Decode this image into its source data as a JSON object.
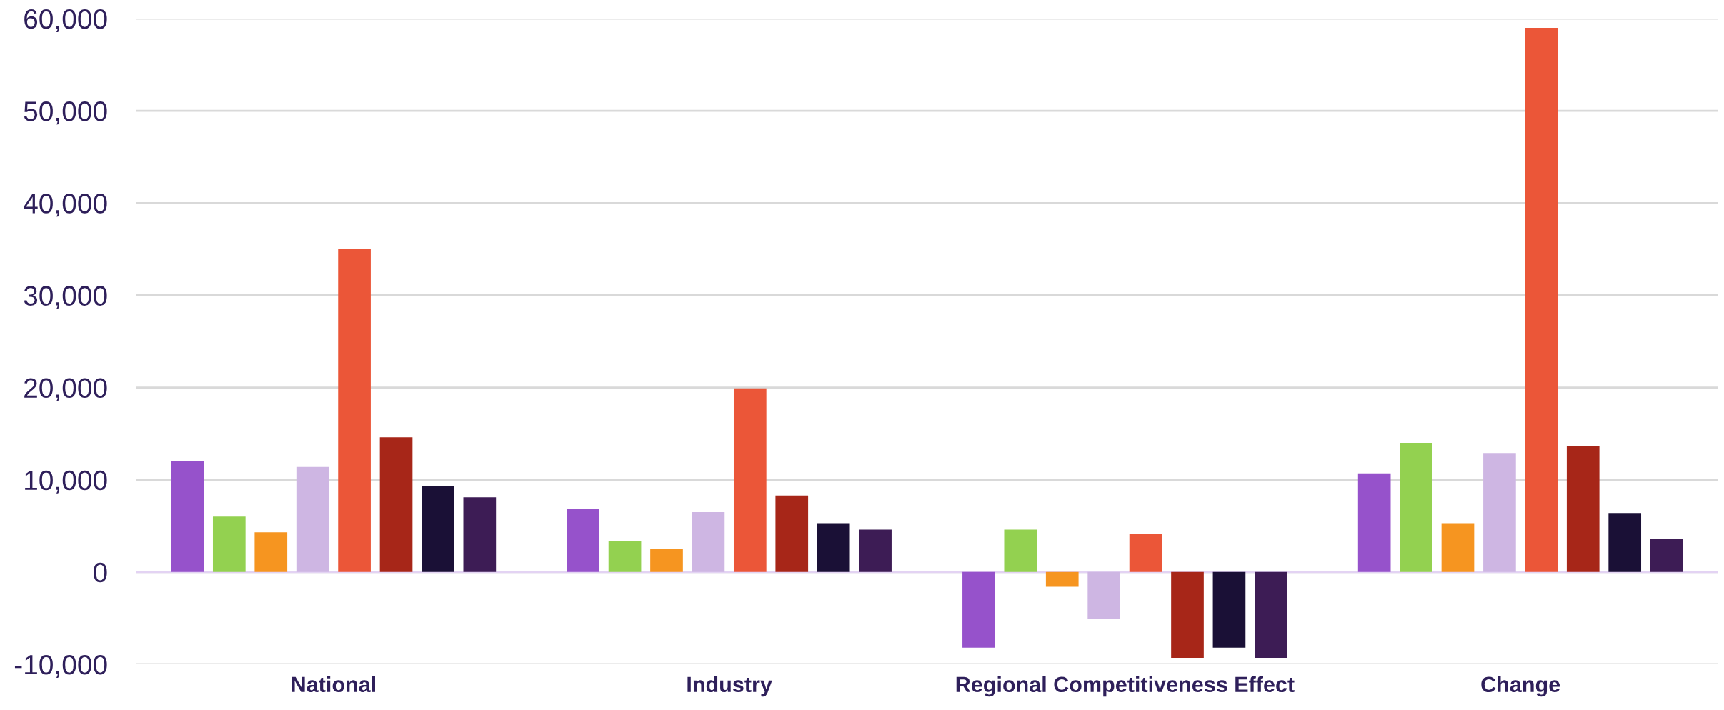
{
  "chart_data": {
    "type": "bar",
    "categories": [
      "National",
      "Industry",
      "Regional Competitiveness Effect",
      "Change"
    ],
    "series": [
      {
        "color": "#9652cb",
        "values": [
          12000,
          6800,
          -8200,
          10700
        ]
      },
      {
        "color": "#93d150",
        "values": [
          6000,
          3400,
          4600,
          14000
        ]
      },
      {
        "color": "#f69520",
        "values": [
          4300,
          2500,
          -1600,
          5300
        ]
      },
      {
        "color": "#ceb6e3",
        "values": [
          11400,
          6500,
          -5100,
          12900
        ]
      },
      {
        "color": "#eb5638",
        "values": [
          35000,
          19900,
          4100,
          59000
        ]
      },
      {
        "color": "#a72618",
        "values": [
          14600,
          8300,
          -9300,
          13700
        ]
      },
      {
        "color": "#1a1036",
        "values": [
          9300,
          5300,
          -8200,
          6400
        ]
      },
      {
        "color": "#3d1c55",
        "values": [
          8100,
          4600,
          -9300,
          3600
        ]
      }
    ],
    "ylim": [
      -10000,
      60000
    ],
    "yticks": [
      {
        "value": -10000,
        "label": "-10,000"
      },
      0,
      {
        "value": 10000,
        "label": "10,000"
      },
      {
        "value": 20000,
        "label": "20,000"
      },
      {
        "value": 30000,
        "label": "30,000"
      },
      {
        "value": 40000,
        "label": "40,000"
      },
      {
        "value": 50000,
        "label": "50,000"
      },
      {
        "value": 60000,
        "label": "60,000"
      }
    ],
    "grid": "y"
  }
}
